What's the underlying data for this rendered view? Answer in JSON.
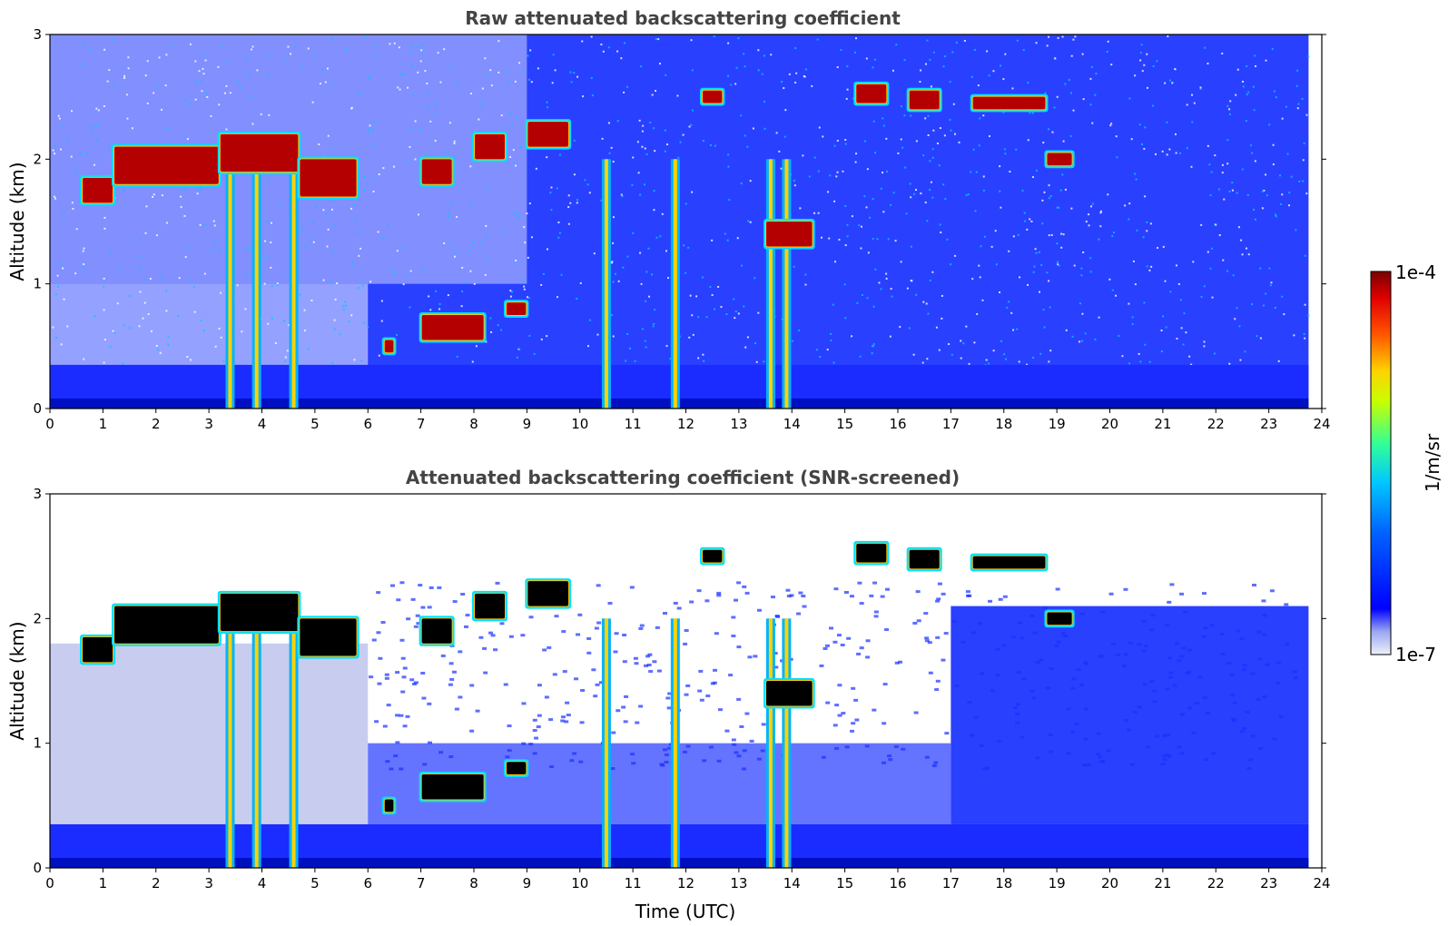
{
  "chart_data": [
    {
      "type": "heatmap",
      "title": "Raw attenuated backscattering coefficient",
      "xlabel": "",
      "ylabel": "Altitude (km)",
      "xlim": [
        0,
        24
      ],
      "ylim": [
        0,
        3
      ],
      "xticks": [
        "0",
        "1",
        "2",
        "3",
        "4",
        "5",
        "6",
        "7",
        "8",
        "9",
        "10",
        "11",
        "12",
        "13",
        "14",
        "15",
        "16",
        "17",
        "18",
        "19",
        "20",
        "21",
        "22",
        "23",
        "24"
      ],
      "yticks": [
        "0",
        "1",
        "2",
        "3"
      ],
      "data_extent_x": [
        0,
        23.75
      ],
      "features": {
        "cloud_layers": [
          {
            "t": [
              0.6,
              1.2
            ],
            "alt": [
              1.65,
              1.85
            ]
          },
          {
            "t": [
              1.2,
              3.2
            ],
            "alt": [
              1.8,
              2.1
            ]
          },
          {
            "t": [
              3.2,
              4.7
            ],
            "alt": [
              1.9,
              2.2
            ]
          },
          {
            "t": [
              4.7,
              5.8
            ],
            "alt": [
              1.7,
              2.0
            ]
          },
          {
            "t": [
              7.0,
              7.6
            ],
            "alt": [
              1.8,
              2.0
            ]
          },
          {
            "t": [
              8.0,
              8.6
            ],
            "alt": [
              2.0,
              2.2
            ]
          },
          {
            "t": [
              9.0,
              9.8
            ],
            "alt": [
              2.1,
              2.3
            ]
          },
          {
            "t": [
              12.3,
              12.7
            ],
            "alt": [
              2.45,
              2.55
            ]
          },
          {
            "t": [
              13.5,
              14.4
            ],
            "alt": [
              1.3,
              1.5
            ]
          },
          {
            "t": [
              15.2,
              15.8
            ],
            "alt": [
              2.45,
              2.6
            ]
          },
          {
            "t": [
              16.2,
              16.8
            ],
            "alt": [
              2.4,
              2.55
            ]
          },
          {
            "t": [
              17.4,
              18.8
            ],
            "alt": [
              2.4,
              2.5
            ]
          },
          {
            "t": [
              18.8,
              19.3
            ],
            "alt": [
              1.95,
              2.05
            ]
          },
          {
            "t": [
              6.3,
              6.5
            ],
            "alt": [
              0.45,
              0.55
            ]
          },
          {
            "t": [
              7.0,
              8.2
            ],
            "alt": [
              0.55,
              0.75
            ]
          },
          {
            "t": [
              8.6,
              9.0
            ],
            "alt": [
              0.75,
              0.85
            ]
          }
        ],
        "precip_columns": [
          3.4,
          3.9,
          4.6,
          10.5,
          11.8,
          13.6,
          13.9
        ]
      }
    },
    {
      "type": "heatmap",
      "title": "Attenuated backscattering coefficient (SNR-screened)",
      "xlabel": "Time (UTC)",
      "ylabel": "Altitude (km)",
      "xlim": [
        0,
        24
      ],
      "ylim": [
        0,
        3
      ],
      "xticks": [
        "0",
        "1",
        "2",
        "3",
        "4",
        "5",
        "6",
        "7",
        "8",
        "9",
        "10",
        "11",
        "12",
        "13",
        "14",
        "15",
        "16",
        "17",
        "18",
        "19",
        "20",
        "21",
        "22",
        "23",
        "24"
      ],
      "yticks": [
        "0",
        "1",
        "2",
        "3"
      ],
      "data_extent_x": [
        0,
        23.75
      ]
    }
  ],
  "colorbar": {
    "label": "1/m/sr",
    "max_label": "1e-4",
    "min_label": "1e-7",
    "colormap": "jet",
    "scale": "log"
  },
  "colors": {
    "background_blue": "#1432ff",
    "deep_blue": "#0014c8",
    "pale_blue": "#b4bef0",
    "cloud_red": "#b40000",
    "saturated": "#000000"
  }
}
